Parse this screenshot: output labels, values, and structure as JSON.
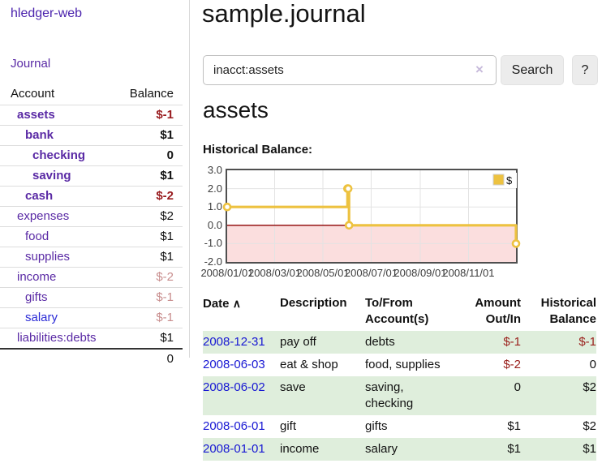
{
  "colors": {
    "link_purple": "#5a2aa5",
    "link_blue": "#1717d3",
    "negative_red": "#981b1e",
    "negative_faded": "#c88d8d",
    "row_green": "#dfeedc",
    "chart_gold": "#edc240",
    "chart_negative_bg": "#fbdede",
    "chart_zero_line": "#8b0000"
  },
  "sidebar": {
    "brand": "hledger-web",
    "journal_label": "Journal",
    "accounts_table": {
      "headers": [
        "Account",
        "Balance"
      ],
      "rows": [
        {
          "account": "assets",
          "balance": "$-1",
          "indent": 1,
          "bold": true,
          "balance_style": "neg-strong"
        },
        {
          "account": "bank",
          "balance": "$1",
          "indent": 2,
          "bold": true,
          "balance_style": "pos-strong"
        },
        {
          "account": "checking",
          "balance": "0",
          "indent": 3,
          "bold": true,
          "balance_style": "pos-strong"
        },
        {
          "account": "saving",
          "balance": "$1",
          "indent": 3,
          "bold": true,
          "balance_style": "pos-strong"
        },
        {
          "account": "cash",
          "balance": "$-2",
          "indent": 2,
          "bold": true,
          "balance_style": "neg-strong"
        },
        {
          "account": "expenses",
          "balance": "$2",
          "indent": 1,
          "bold": false,
          "balance_style": "pos"
        },
        {
          "account": "food",
          "balance": "$1",
          "indent": 2,
          "bold": false,
          "balance_style": "pos"
        },
        {
          "account": "supplies",
          "balance": "$1",
          "indent": 2,
          "bold": false,
          "balance_style": "pos"
        },
        {
          "account": "income",
          "balance": "$-2",
          "indent": 1,
          "bold": false,
          "balance_style": "neg-faded"
        },
        {
          "account": "gifts",
          "balance": "$-1",
          "indent": 2,
          "bold": false,
          "balance_style": "neg-faded"
        },
        {
          "account": "salary",
          "balance": "$-1",
          "indent": 2,
          "bold": false,
          "balance_style": "neg-faded",
          "link_style": "blue"
        },
        {
          "account": "liabilities:debts",
          "balance": "$1",
          "indent": 1,
          "bold": false,
          "balance_style": "pos"
        }
      ],
      "total": "0"
    }
  },
  "header": {
    "title": "sample.journal"
  },
  "search": {
    "value": "inacct:assets",
    "clear_icon": "×",
    "button_label": "Search",
    "help_label": "?"
  },
  "account_page": {
    "heading": "assets",
    "chart_title": "Historical Balance:"
  },
  "chart_data": {
    "type": "line",
    "title": "Historical Balance:",
    "legend": "$",
    "legend_position": "top-right",
    "grid": true,
    "step": true,
    "x_range": [
      "2008-01-01",
      "2008-12-31"
    ],
    "ylim": [
      -2,
      3
    ],
    "y_ticks": [
      "3.0",
      "2.0",
      "1.0",
      "0.0",
      "-1.0",
      "-2.0"
    ],
    "x_ticks": [
      "2008/01/01",
      "2008/03/01",
      "2008/05/01",
      "2008/07/01",
      "2008/09/01",
      "2008/11/01"
    ],
    "series": [
      {
        "name": "$",
        "color": "#edc240",
        "points": [
          [
            "2008-01-01",
            1
          ],
          [
            "2008-06-01",
            2
          ],
          [
            "2008-06-02",
            2
          ],
          [
            "2008-06-03",
            0
          ],
          [
            "2008-12-31",
            -1
          ]
        ]
      }
    ],
    "negative_region_color": "#fbdede",
    "zero_line_color": "#8b0000"
  },
  "register_table": {
    "sort_indicator": "∧",
    "headers": [
      "Date",
      "Description",
      "To/From Account(s)",
      "Amount Out/In",
      "Historical Balance"
    ],
    "rows": [
      {
        "date": "2008-12-31",
        "description": "pay off",
        "accounts": "debts",
        "amount": "$-1",
        "balance": "$-1",
        "amount_neg": true,
        "balance_neg": true
      },
      {
        "date": "2008-06-03",
        "description": "eat & shop",
        "accounts": "food, supplies",
        "amount": "$-2",
        "balance": "0",
        "amount_neg": true,
        "balance_neg": false
      },
      {
        "date": "2008-06-02",
        "description": "save",
        "accounts": "saving, checking",
        "amount": "0",
        "balance": "$2",
        "amount_neg": false,
        "balance_neg": false
      },
      {
        "date": "2008-06-01",
        "description": "gift",
        "accounts": "gifts",
        "amount": "$1",
        "balance": "$2",
        "amount_neg": false,
        "balance_neg": false
      },
      {
        "date": "2008-01-01",
        "description": "income",
        "accounts": "salary",
        "amount": "$1",
        "balance": "$1",
        "amount_neg": false,
        "balance_neg": false
      }
    ]
  }
}
